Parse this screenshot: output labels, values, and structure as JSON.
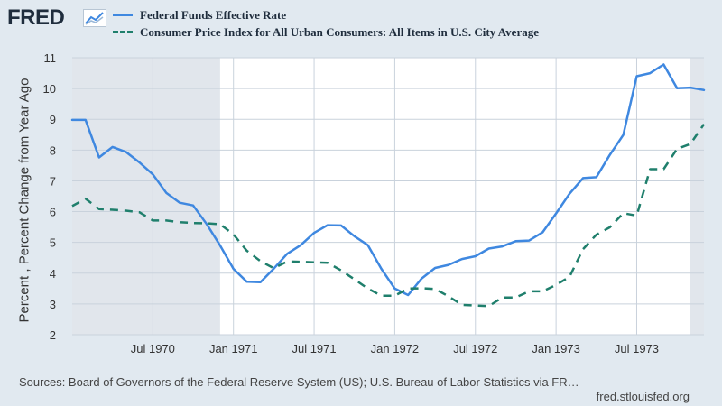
{
  "header": {
    "logo": "FRED",
    "logo_icon": "chart-line-icon"
  },
  "legend": {
    "series1": "Federal Funds Effective Rate",
    "series2": "Consumer Price Index for All Urban Consumers: All Items in U.S. City Average"
  },
  "footer": {
    "source": "Sources: Board of Governors of the Federal Reserve System (US); U.S. Bureau of Labor Statistics via FR…",
    "site": "fred.stlouisfed.org"
  },
  "colors": {
    "series1": "#3f88e0",
    "series2": "#1f7f6c",
    "recession": "#e1e6ec",
    "background": "#e1e9f0"
  },
  "chart_data": {
    "type": "line",
    "ylabel": "Percent , Percent Change from Year Ago",
    "ylim": [
      2,
      11
    ],
    "yticks": [
      2,
      3,
      4,
      5,
      6,
      7,
      8,
      9,
      10,
      11
    ],
    "xlim": [
      1970.0,
      1973.917
    ],
    "xticks": [
      {
        "value": 1970.5,
        "label": "Jul 1970"
      },
      {
        "value": 1971.0,
        "label": "Jan 1971"
      },
      {
        "value": 1971.5,
        "label": "Jul 1971"
      },
      {
        "value": 1972.0,
        "label": "Jan 1972"
      },
      {
        "value": 1972.5,
        "label": "Jul 1972"
      },
      {
        "value": 1973.0,
        "label": "Jan 1973"
      },
      {
        "value": 1973.5,
        "label": "Jul 1973"
      }
    ],
    "recessions": [
      {
        "start": 1970.0,
        "end": 1970.917
      },
      {
        "start": 1973.833,
        "end": 1973.917
      }
    ],
    "series": [
      {
        "name": "Federal Funds Effective Rate",
        "style": "solid",
        "x": [
          1970.0,
          1970.083,
          1970.167,
          1970.25,
          1970.333,
          1970.417,
          1970.5,
          1970.583,
          1970.667,
          1970.75,
          1970.833,
          1970.917,
          1971.0,
          1971.083,
          1971.167,
          1971.25,
          1971.333,
          1971.417,
          1971.5,
          1971.583,
          1971.667,
          1971.75,
          1971.833,
          1971.917,
          1972.0,
          1972.083,
          1972.167,
          1972.25,
          1972.333,
          1972.417,
          1972.5,
          1972.583,
          1972.667,
          1972.75,
          1972.833,
          1972.917,
          1973.0,
          1973.083,
          1973.167,
          1973.25,
          1973.333,
          1973.417,
          1973.5,
          1973.583,
          1973.667,
          1973.75,
          1973.833,
          1973.917
        ],
        "values": [
          8.98,
          8.98,
          7.76,
          8.1,
          7.94,
          7.6,
          7.21,
          6.61,
          6.29,
          6.2,
          5.6,
          4.9,
          4.14,
          3.72,
          3.71,
          4.15,
          4.63,
          4.91,
          5.31,
          5.56,
          5.55,
          5.2,
          4.91,
          4.14,
          3.5,
          3.29,
          3.83,
          4.17,
          4.27,
          4.46,
          4.55,
          4.8,
          4.87,
          5.04,
          5.06,
          5.33,
          5.94,
          6.58,
          7.09,
          7.12,
          7.84,
          8.49,
          10.4,
          10.5,
          10.78,
          10.01,
          10.03,
          9.95
        ]
      },
      {
        "name": "Consumer Price Index for All Urban Consumers: All Items in U.S. City Average",
        "style": "dashed",
        "x": [
          1970.0,
          1970.083,
          1970.167,
          1970.25,
          1970.333,
          1970.417,
          1970.5,
          1970.583,
          1970.667,
          1970.75,
          1970.833,
          1970.917,
          1971.0,
          1971.083,
          1971.167,
          1971.25,
          1971.333,
          1971.417,
          1971.5,
          1971.583,
          1971.667,
          1971.75,
          1971.833,
          1971.917,
          1972.0,
          1972.083,
          1972.167,
          1972.25,
          1972.333,
          1972.417,
          1972.5,
          1972.583,
          1972.667,
          1972.75,
          1972.833,
          1972.917,
          1973.0,
          1973.083,
          1973.167,
          1973.25,
          1973.333,
          1973.417,
          1973.5,
          1973.583,
          1973.667,
          1973.75,
          1973.833,
          1973.917
        ],
        "values": [
          6.18,
          6.42,
          6.08,
          6.06,
          6.03,
          5.98,
          5.71,
          5.71,
          5.66,
          5.63,
          5.62,
          5.59,
          5.26,
          4.73,
          4.39,
          4.16,
          4.38,
          4.37,
          4.35,
          4.34,
          4.09,
          3.8,
          3.5,
          3.27,
          3.27,
          3.5,
          3.51,
          3.49,
          3.25,
          2.97,
          2.95,
          2.93,
          3.21,
          3.21,
          3.41,
          3.41,
          3.62,
          3.88,
          4.78,
          5.25,
          5.49,
          5.95,
          5.87,
          7.38,
          7.38,
          8.04,
          8.2,
          8.84
        ]
      }
    ]
  }
}
